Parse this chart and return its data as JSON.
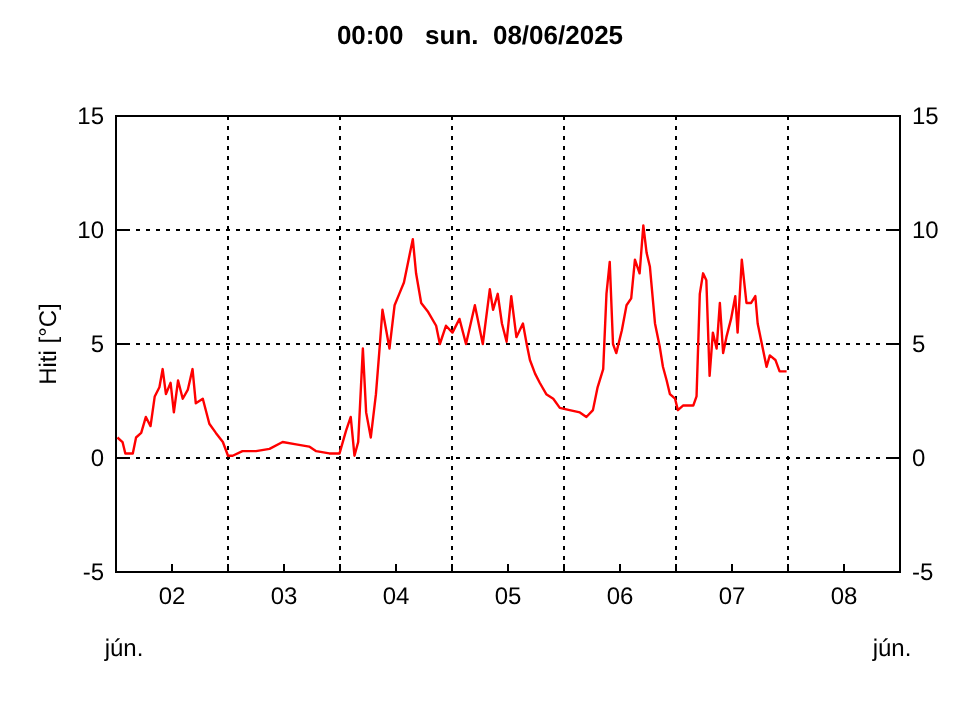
{
  "chart_data": {
    "type": "line",
    "title": "00:00   sun.  08/06/2025",
    "ylabel": "Hiti [°C]",
    "annotations": [
      "jún.",
      "jún."
    ],
    "xlim": [
      "2025-06-02",
      "2025-06-09"
    ],
    "xticks": [
      {
        "value": "2025-06-02T12:00",
        "label": "02"
      },
      {
        "value": "2025-06-03",
        "label": null
      },
      {
        "value": "2025-06-03T12:00",
        "label": "03"
      },
      {
        "value": "2025-06-04",
        "label": null
      },
      {
        "value": "2025-06-04T12:00",
        "label": "04"
      },
      {
        "value": "2025-06-05",
        "label": null
      },
      {
        "value": "2025-06-05T12:00",
        "label": "05"
      },
      {
        "value": "2025-06-06",
        "label": null
      },
      {
        "value": "2025-06-06T12:00",
        "label": "06"
      },
      {
        "value": "2025-06-07",
        "label": null
      },
      {
        "value": "2025-06-07T12:00",
        "label": "07"
      },
      {
        "value": "2025-06-08",
        "label": null
      },
      {
        "value": "2025-06-08T12:00",
        "label": "08"
      }
    ],
    "ylim": [
      -5,
      15
    ],
    "yticks": [
      -5,
      0,
      5,
      10,
      15
    ],
    "y2lim": [
      -5,
      15
    ],
    "y2ticks": [
      -5,
      0,
      5,
      10,
      15
    ],
    "grid": true,
    "marker": "none",
    "line_style": "solid",
    "series": [
      {
        "color": "#ff0000",
        "x": [
          "2025-06-02T00:18",
          "2025-06-02T01:24",
          "2025-06-02T02:00",
          "2025-06-02T03:36",
          "2025-06-02T04:18",
          "2025-06-02T05:24",
          "2025-06-02T06:24",
          "2025-06-02T07:24",
          "2025-06-02T08:18",
          "2025-06-02T09:18",
          "2025-06-02T10:00",
          "2025-06-02T10:42",
          "2025-06-02T11:42",
          "2025-06-02T12:24",
          "2025-06-02T13:18",
          "2025-06-02T14:18",
          "2025-06-02T15:24",
          "2025-06-02T16:24",
          "2025-06-02T17:06",
          "2025-06-02T18:36",
          "2025-06-02T20:00",
          "2025-06-02T21:24",
          "2025-06-02T22:54",
          "2025-06-03T00:00",
          "2025-06-03T01:00",
          "2025-06-03T03:06",
          "2025-06-03T06:00",
          "2025-06-03T08:54",
          "2025-06-03T11:42",
          "2025-06-03T14:36",
          "2025-06-03T17:24",
          "2025-06-03T18:54",
          "2025-06-03T21:42",
          "2025-06-03T23:54",
          "2025-06-04T01:18",
          "2025-06-04T02:18",
          "2025-06-04T03:06",
          "2025-06-04T03:54",
          "2025-06-04T04:54",
          "2025-06-04T05:36",
          "2025-06-04T06:36",
          "2025-06-04T07:42",
          "2025-06-04T08:24",
          "2025-06-04T09:06",
          "2025-06-04T09:54",
          "2025-06-04T10:36",
          "2025-06-04T11:42",
          "2025-06-04T12:42",
          "2025-06-04T13:42",
          "2025-06-04T14:36",
          "2025-06-04T15:36",
          "2025-06-04T16:18",
          "2025-06-04T17:24",
          "2025-06-04T18:54",
          "2025-06-04T20:36",
          "2025-06-04T21:24",
          "2025-06-04T22:42",
          "2025-06-05T00:06",
          "2025-06-05T01:36",
          "2025-06-05T03:00",
          "2025-06-05T04:54",
          "2025-06-05T06:36",
          "2025-06-05T08:06",
          "2025-06-05T08:48",
          "2025-06-05T09:48",
          "2025-06-05T10:42",
          "2025-06-05T11:42",
          "2025-06-05T12:42",
          "2025-06-05T13:48",
          "2025-06-05T15:12",
          "2025-06-05T16:00",
          "2025-06-05T16:42",
          "2025-06-05T17:48",
          "2025-06-05T18:48",
          "2025-06-05T20:12",
          "2025-06-05T21:42",
          "2025-06-05T23:06",
          "2025-06-06T01:12",
          "2025-06-06T03:24",
          "2025-06-06T04:48",
          "2025-06-06T06:12",
          "2025-06-06T07:12",
          "2025-06-06T08:24",
          "2025-06-06T09:06",
          "2025-06-06T09:48",
          "2025-06-06T10:30",
          "2025-06-06T11:12",
          "2025-06-06T12:24",
          "2025-06-06T13:24",
          "2025-06-06T14:24",
          "2025-06-06T15:12",
          "2025-06-06T16:12",
          "2025-06-06T17:00",
          "2025-06-06T17:42",
          "2025-06-06T18:24",
          "2025-06-06T19:30",
          "2025-06-06T20:30",
          "2025-06-06T21:12",
          "2025-06-06T22:00",
          "2025-06-06T22:42",
          "2025-06-06T23:48",
          "2025-06-07T00:24",
          "2025-06-07T01:30",
          "2025-06-07T03:42",
          "2025-06-07T04:24",
          "2025-06-07T05:06",
          "2025-06-07T05:48",
          "2025-06-07T06:30",
          "2025-06-07T07:12",
          "2025-06-07T07:54",
          "2025-06-07T08:42",
          "2025-06-07T09:24",
          "2025-06-07T10:06",
          "2025-06-07T10:48",
          "2025-06-07T11:48",
          "2025-06-07T12:42",
          "2025-06-07T13:12",
          "2025-06-07T14:06",
          "2025-06-07T15:06",
          "2025-06-07T16:06",
          "2025-06-07T17:00",
          "2025-06-07T17:30",
          "2025-06-07T18:24",
          "2025-06-07T19:24",
          "2025-06-07T20:06",
          "2025-06-07T21:18",
          "2025-06-07T22:12",
          "2025-06-07T23:42"
        ],
        "values": [
          0.9,
          0.7,
          0.2,
          0.2,
          0.9,
          1.1,
          1.8,
          1.4,
          2.7,
          3.1,
          3.9,
          2.8,
          3.3,
          2.0,
          3.4,
          2.6,
          3.0,
          3.9,
          2.4,
          2.6,
          1.5,
          1.1,
          0.7,
          0.1,
          0.1,
          0.3,
          0.3,
          0.4,
          0.7,
          0.6,
          0.5,
          0.3,
          0.2,
          0.2,
          1.2,
          1.8,
          0.1,
          0.7,
          4.8,
          2.0,
          0.9,
          2.8,
          4.6,
          6.5,
          5.6,
          4.8,
          6.7,
          7.2,
          7.7,
          8.6,
          9.6,
          8.1,
          6.8,
          6.4,
          5.8,
          5.0,
          5.8,
          5.5,
          6.1,
          5.0,
          6.7,
          5.0,
          7.4,
          6.5,
          7.2,
          5.9,
          5.1,
          7.1,
          5.3,
          5.9,
          5.0,
          4.3,
          3.7,
          3.3,
          2.8,
          2.6,
          2.2,
          2.1,
          2.0,
          1.8,
          2.1,
          3.1,
          3.9,
          7.2,
          8.6,
          5.0,
          4.6,
          5.6,
          6.7,
          7.0,
          8.7,
          8.1,
          10.2,
          9.0,
          8.4,
          5.9,
          4.9,
          4.0,
          3.4,
          2.8,
          2.6,
          2.1,
          2.3,
          2.3,
          2.7,
          7.2,
          8.1,
          7.8,
          3.6,
          5.5,
          4.8,
          6.8,
          4.6,
          5.3,
          6.1,
          7.1,
          5.5,
          8.7,
          6.8,
          6.8,
          7.1,
          5.9,
          5.0,
          4.0,
          4.5,
          4.3,
          3.8,
          3.8
        ]
      }
    ]
  }
}
